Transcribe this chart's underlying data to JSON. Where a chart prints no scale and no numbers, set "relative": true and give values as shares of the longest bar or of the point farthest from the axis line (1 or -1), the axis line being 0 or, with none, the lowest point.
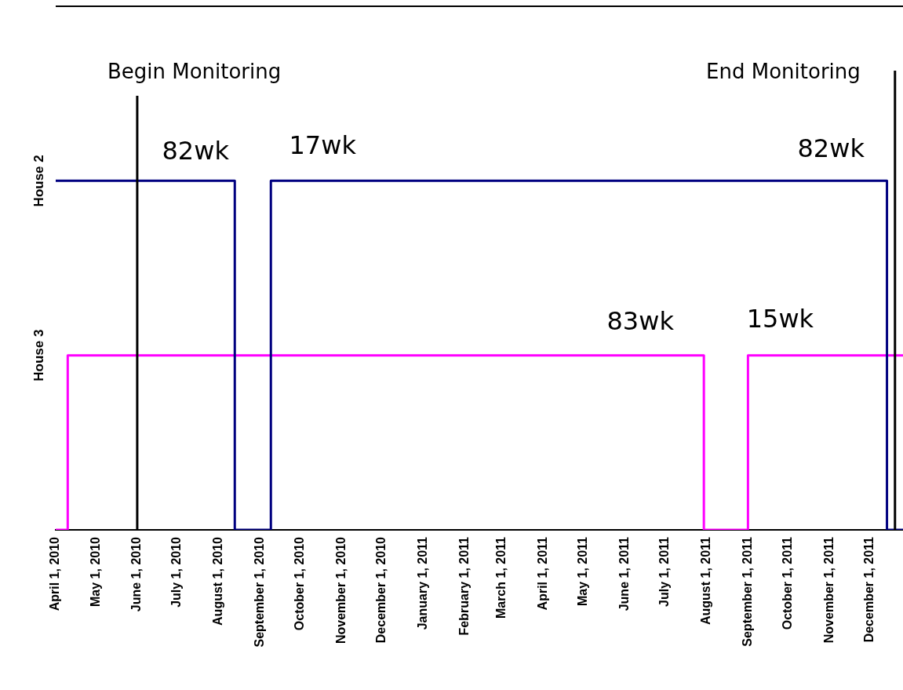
{
  "chart_data": {
    "type": "step",
    "xlim": [
      "2010-04-01",
      "2011-12-26"
    ],
    "xticks": [
      {
        "value": "2010-04-01",
        "label": "April 1, 2010"
      },
      {
        "value": "2010-05-01",
        "label": "May 1, 2010"
      },
      {
        "value": "2010-06-01",
        "label": "June 1, 2010"
      },
      {
        "value": "2010-07-01",
        "label": "July 1, 2010"
      },
      {
        "value": "2010-08-01",
        "label": "August 1, 2010"
      },
      {
        "value": "2010-09-01",
        "label": "September 1, 2010"
      },
      {
        "value": "2010-10-01",
        "label": "October 1, 2010"
      },
      {
        "value": "2010-11-01",
        "label": "November 1, 2010"
      },
      {
        "value": "2010-12-01",
        "label": "December 1, 2010"
      },
      {
        "value": "2011-01-01",
        "label": "January 1, 2011"
      },
      {
        "value": "2011-02-01",
        "label": "February 1, 2011"
      },
      {
        "value": "2011-03-01",
        "label": "March 1, 2011"
      },
      {
        "value": "2011-04-01",
        "label": "April 1, 2011"
      },
      {
        "value": "2011-05-01",
        "label": "May 1, 2011"
      },
      {
        "value": "2011-06-01",
        "label": "June 1, 2011"
      },
      {
        "value": "2011-07-01",
        "label": "July 1, 2011"
      },
      {
        "value": "2011-08-01",
        "label": "August 1, 2011"
      },
      {
        "value": "2011-09-01",
        "label": "September 1, 2011"
      },
      {
        "value": "2011-10-01",
        "label": "October 1, 2011"
      },
      {
        "value": "2011-11-01",
        "label": "November 1, 2011"
      },
      {
        "value": "2011-12-01",
        "label": "December 1, 2011"
      }
    ],
    "relative": true,
    "series": [
      {
        "name": "House 2",
        "color": "#000080",
        "x": [
          "2010-04-01",
          "2010-08-13",
          "2010-09-09",
          "2011-12-14",
          "2011-12-26"
        ],
        "values": [
          1,
          0,
          1,
          0,
          0
        ]
      },
      {
        "name": "House 3",
        "color": "#ff00ff",
        "x": [
          "2010-04-01",
          "2010-04-10",
          "2011-07-30",
          "2011-09-01",
          "2011-12-26"
        ],
        "values": [
          0,
          0.5,
          0,
          0.5,
          0.5
        ]
      }
    ],
    "ref_lines": [
      {
        "axis": "x",
        "value": "2010-06-01",
        "label": "Begin Monitoring",
        "color": "#000000"
      },
      {
        "axis": "x",
        "value": "2011-12-20",
        "label": "End Monitoring",
        "color": "#000000"
      }
    ],
    "annotations": [
      "82wk",
      "17wk",
      "82wk",
      "83wk",
      "15wk"
    ],
    "grid": false,
    "legend": false,
    "marker": "none",
    "line_style": "solid"
  }
}
